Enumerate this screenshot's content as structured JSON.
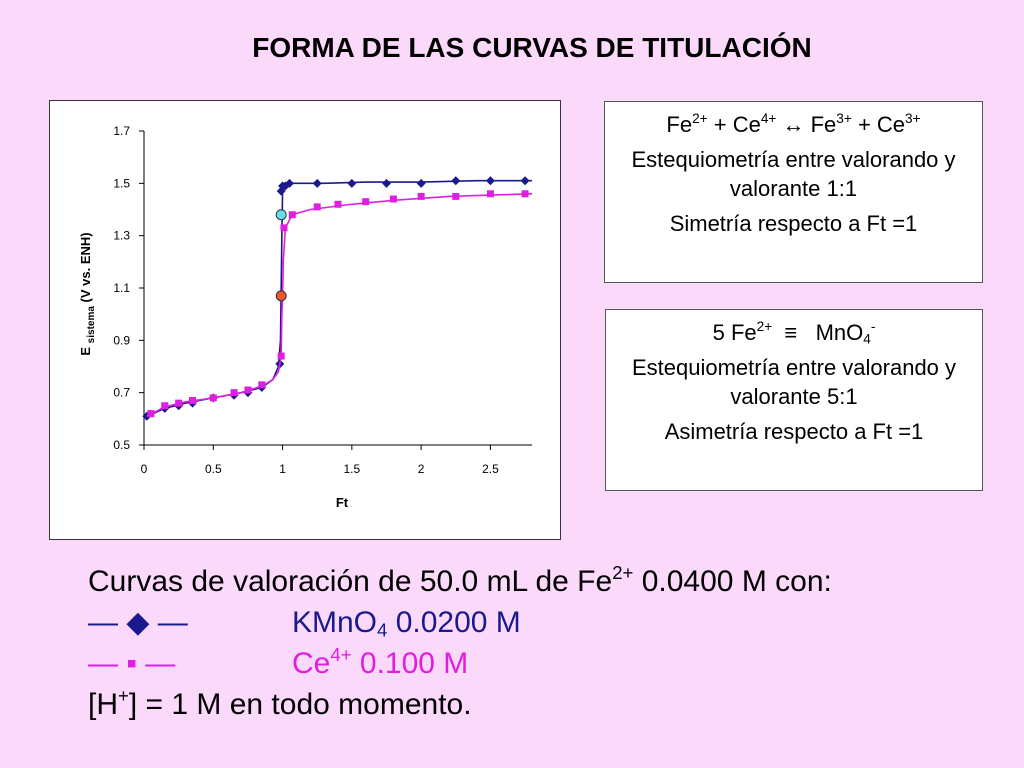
{
  "title": "FORMA DE LAS CURVAS DE TITULACIÓN",
  "box1": {
    "eq_left": "Fe",
    "eq_left_sup": "2+",
    "plus1": " + Ce",
    "ce_sup": "4+",
    "arrow": " ↔ Fe",
    "fe3_sup": "3+",
    "plus2": " + Ce",
    "ce3_sup": "3+",
    "line2": "Estequiometría entre valorando y valorante 1:1",
    "line3": "Simetría respecto a Ft =1"
  },
  "box2": {
    "eq_a": "5 Fe",
    "eq_a_sup": "2+",
    "equiv": "  ≡   MnO",
    "mno_sub": "4",
    "mno_sup": "-",
    "line2": "Estequiometría entre valorando y valorante 5:1",
    "line3": "Asimetría respecto a Ft =1"
  },
  "bottom": {
    "line1_a": "Curvas de valoración de 50.0 mL de Fe",
    "line1_sup": "2+",
    "line1_b": " 0.0400 M con:",
    "sym1": "— ◆ —",
    "kmno": "KMnO",
    "kmno_sub": "4",
    "kmno_conc": " 0.0200 M",
    "sym2": "— ▪ —",
    "ce": "Ce",
    "ce_sup": "4+",
    "ce_conc": " 0.100 M",
    "h_a": "[H",
    "h_sup": "+",
    "h_b": "] = 1 M en todo momento."
  },
  "colors": {
    "kmno4": "#1a1a8c",
    "ce": "#e01ee0",
    "eq_point_kmno4": "#66ddee",
    "eq_point_ce": "#ee5533"
  },
  "chart_data": {
    "type": "line",
    "xlabel": "Ft",
    "ylabel_main": "E",
    "ylabel_sub": "sistema",
    "ylabel_rest": "(V vs. ENH)",
    "xlim": [
      0,
      2.8
    ],
    "ylim": [
      0.5,
      1.7
    ],
    "xticks": [
      "0",
      "0.5",
      "1",
      "1.5",
      "2",
      "2.5"
    ],
    "xtick_values": [
      0,
      0.5,
      1,
      1.5,
      2,
      2.5
    ],
    "yticks": [
      "0.5",
      "0.7",
      "0.9",
      "1.1",
      "1.3",
      "1.5",
      "1.7"
    ],
    "ytick_values": [
      0.5,
      0.7,
      0.9,
      1.1,
      1.3,
      1.5,
      1.7
    ],
    "grid": false,
    "series": [
      {
        "marker": "diamond",
        "color": "#1a1a8c",
        "x": [
          0.02,
          0.15,
          0.25,
          0.35,
          0.5,
          0.65,
          0.75,
          0.85,
          0.98,
          0.99,
          1.0,
          1.02,
          1.05,
          1.25,
          1.5,
          1.75,
          2.0,
          2.25,
          2.5,
          2.75
        ],
        "y": [
          0.61,
          0.64,
          0.65,
          0.66,
          0.68,
          0.69,
          0.7,
          0.72,
          0.81,
          1.47,
          1.49,
          1.49,
          1.5,
          1.5,
          1.5,
          1.5,
          1.5,
          1.51,
          1.51,
          1.51
        ],
        "line_x": [
          0.02,
          0.15,
          0.3,
          0.5,
          0.7,
          0.85,
          0.93,
          0.97,
          0.985,
          0.995,
          1.0,
          1.01,
          1.05,
          1.3,
          1.6,
          2.0,
          2.4,
          2.8
        ],
        "line_y": [
          0.61,
          0.64,
          0.66,
          0.68,
          0.7,
          0.72,
          0.75,
          0.8,
          0.9,
          1.3,
          1.47,
          1.49,
          1.5,
          1.5,
          1.505,
          1.505,
          1.51,
          1.51
        ]
      },
      {
        "marker": "square",
        "color": "#e01ee0",
        "x": [
          0.05,
          0.15,
          0.25,
          0.35,
          0.5,
          0.65,
          0.75,
          0.85,
          0.99,
          1.01,
          1.07,
          1.25,
          1.4,
          1.6,
          1.8,
          2.0,
          2.25,
          2.5,
          2.75
        ],
        "y": [
          0.62,
          0.65,
          0.66,
          0.67,
          0.68,
          0.7,
          0.71,
          0.73,
          0.84,
          1.33,
          1.38,
          1.41,
          1.42,
          1.43,
          1.44,
          1.45,
          1.45,
          1.46,
          1.46
        ],
        "line_x": [
          0.02,
          0.15,
          0.3,
          0.5,
          0.7,
          0.85,
          0.93,
          0.97,
          0.99,
          0.995,
          1.0,
          1.005,
          1.02,
          1.07,
          1.2,
          1.5,
          1.8,
          2.2,
          2.5,
          2.8
        ],
        "line_y": [
          0.61,
          0.645,
          0.665,
          0.68,
          0.7,
          0.725,
          0.75,
          0.78,
          0.84,
          1.0,
          1.07,
          1.2,
          1.33,
          1.38,
          1.4,
          1.42,
          1.435,
          1.45,
          1.455,
          1.46
        ]
      }
    ],
    "equivalence_points": [
      {
        "x": 0.99,
        "y": 1.38,
        "color": "#66ddee"
      },
      {
        "x": 0.99,
        "y": 1.07,
        "color": "#ee5533"
      }
    ]
  }
}
